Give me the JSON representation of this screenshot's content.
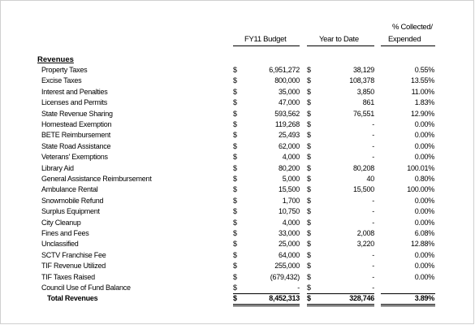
{
  "header": {
    "budget": "FY11 Budget",
    "ytd": "Year to Date",
    "pct_line1": "% Collected/",
    "pct_line2": "Expended"
  },
  "section_title": "Revenues",
  "rows": [
    {
      "label": "Property Taxes",
      "d1": "$",
      "budget": "6,951,272",
      "d2": "$",
      "ytd": "38,129",
      "pct": "0.55%"
    },
    {
      "label": "Excise Taxes",
      "d1": "$",
      "budget": "800,000",
      "d2": "$",
      "ytd": "108,378",
      "pct": "13.55%"
    },
    {
      "label": "Interest and Penalties",
      "d1": "$",
      "budget": "35,000",
      "d2": "$",
      "ytd": "3,850",
      "pct": "11.00%"
    },
    {
      "label": "Licenses and Permits",
      "d1": "$",
      "budget": "47,000",
      "d2": "$",
      "ytd": "861",
      "pct": "1.83%"
    },
    {
      "label": "State Revenue Sharing",
      "d1": "$",
      "budget": "593,562",
      "d2": "$",
      "ytd": "76,551",
      "pct": "12.90%"
    },
    {
      "label": "Homestead Exemption",
      "d1": "$",
      "budget": "119,268",
      "d2": "$",
      "ytd": "-",
      "pct": "0.00%"
    },
    {
      "label": "BETE Reimbursement",
      "d1": "$",
      "budget": "25,493",
      "d2": "$",
      "ytd": "-",
      "pct": "0.00%"
    },
    {
      "label": "State Road Assistance",
      "d1": "$",
      "budget": "62,000",
      "d2": "$",
      "ytd": "-",
      "pct": "0.00%"
    },
    {
      "label": "Veterans' Exemptions",
      "d1": "$",
      "budget": "4,000",
      "d2": "$",
      "ytd": "-",
      "pct": "0.00%"
    },
    {
      "label": "Library Aid",
      "d1": "$",
      "budget": "80,200",
      "d2": "$",
      "ytd": "80,208",
      "pct": "100.01%"
    },
    {
      "label": "General Assistance Reimbursement",
      "d1": "$",
      "budget": "5,000",
      "d2": "$",
      "ytd": "40",
      "pct": "0.80%"
    },
    {
      "label": "Ambulance Rental",
      "d1": "$",
      "budget": "15,500",
      "d2": "$",
      "ytd": "15,500",
      "pct": "100.00%"
    },
    {
      "label": "Snowmobile Refund",
      "d1": "$",
      "budget": "1,700",
      "d2": "$",
      "ytd": "-",
      "pct": "0.00%"
    },
    {
      "label": "Surplus Equipment",
      "d1": "$",
      "budget": "10,750",
      "d2": "$",
      "ytd": "-",
      "pct": "0.00%"
    },
    {
      "label": "City Cleanup",
      "d1": "$",
      "budget": "4,000",
      "d2": "$",
      "ytd": "-",
      "pct": "0.00%"
    },
    {
      "label": "Fines and Fees",
      "d1": "$",
      "budget": "33,000",
      "d2": "$",
      "ytd": "2,008",
      "pct": "6.08%"
    },
    {
      "label": "Unclassified",
      "d1": "$",
      "budget": "25,000",
      "d2": "$",
      "ytd": "3,220",
      "pct": "12.88%"
    },
    {
      "label": "SCTV Franchise Fee",
      "d1": "$",
      "budget": "64,000",
      "d2": "$",
      "ytd": "-",
      "pct": "0.00%"
    },
    {
      "label": "TIF Revenue Utilized",
      "d1": "$",
      "budget": "255,000",
      "d2": "$",
      "ytd": "-",
      "pct": "0.00%"
    },
    {
      "label": "TIF Taxes Raised",
      "d1": "$",
      "budget": "(679,432)",
      "d2": "$",
      "ytd": "-",
      "pct": "0.00%"
    },
    {
      "label": "Council Use of Fund Balance",
      "d1": "$",
      "budget": "-",
      "d2": "$",
      "ytd": "-",
      "pct": ""
    }
  ],
  "total": {
    "label": "Total Revenues",
    "d1": "$",
    "budget": "8,452,313",
    "d2": "$",
    "ytd": "328,746",
    "pct": "3.89%"
  }
}
